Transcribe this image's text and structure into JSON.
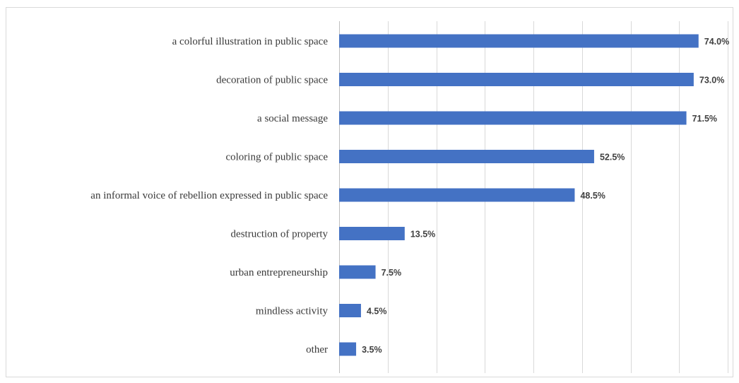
{
  "chart_data": {
    "type": "bar",
    "orientation": "horizontal",
    "categories": [
      "a colorful illustration in public space",
      "decoration of public space",
      "a social message",
      "coloring of public space",
      "an informal voice of rebellion expressed in public space",
      "destruction of property",
      "urban entrepreneurship",
      "mindless activity",
      "other"
    ],
    "values": [
      74.0,
      73.0,
      71.5,
      52.5,
      48.5,
      13.5,
      7.5,
      4.5,
      3.5
    ],
    "value_labels": [
      "74.0%",
      "73.0%",
      "71.5%",
      "52.5%",
      "48.5%",
      "13.5%",
      "7.5%",
      "4.5%",
      "3.5%"
    ],
    "xlim": [
      0,
      80
    ],
    "gridlines": true,
    "legend": "none",
    "title": "",
    "xlabel": "",
    "ylabel": "",
    "bar_color": "#4472c4"
  }
}
